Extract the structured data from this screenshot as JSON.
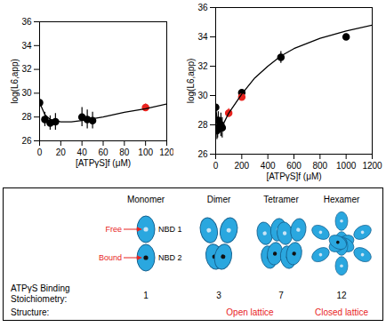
{
  "chart_data": [
    {
      "type": "scatter",
      "x_label": "[ATPγS]f (μM)",
      "y_label": "log(L6,app)",
      "xlim": [
        0,
        120
      ],
      "xticks": [
        0,
        20,
        40,
        60,
        80,
        100,
        120
      ],
      "ylim": [
        26,
        36
      ],
      "yticks": [
        26,
        28,
        30,
        32,
        34,
        36
      ],
      "series": [
        {
          "type": "scatter",
          "color": "#000000",
          "marker": "circle",
          "x": [
            0,
            5,
            10,
            15,
            40,
            45,
            50
          ],
          "values": [
            29.2,
            27.8,
            27.5,
            27.6,
            28.0,
            27.8,
            27.7
          ],
          "error": [
            0.2,
            0.6,
            0.6,
            0.7,
            0.8,
            0.8,
            0.7
          ]
        },
        {
          "type": "scatter",
          "color": "#e8231e",
          "marker": "circle",
          "x": [
            100
          ],
          "values": [
            28.8
          ],
          "error": [
            0.3
          ]
        },
        {
          "type": "line",
          "color": "#000000",
          "line_style": "solid",
          "x": [
            0,
            5,
            10,
            20,
            30,
            40,
            60,
            80,
            100,
            120
          ],
          "values": [
            29.2,
            28.2,
            27.8,
            27.6,
            27.6,
            27.7,
            28.0,
            28.4,
            28.7,
            29.1
          ]
        }
      ]
    },
    {
      "type": "scatter",
      "x_label": "[ATPγS]f (μM)",
      "y_label": "log(L6,app)",
      "xlim": [
        0,
        1200
      ],
      "xticks": [
        0,
        200,
        400,
        600,
        800,
        1000,
        1200
      ],
      "ylim": [
        26,
        36
      ],
      "yticks": [
        26,
        28,
        30,
        32,
        34,
        36
      ],
      "series": [
        {
          "type": "scatter",
          "color": "#000000",
          "marker": "circle",
          "x": [
            0,
            10,
            15,
            20,
            40,
            50,
            200,
            500,
            1000
          ],
          "values": [
            29.2,
            27.6,
            27.8,
            28.3,
            28.0,
            27.8,
            30.2,
            32.6,
            34.0
          ],
          "error": [
            0.2,
            0.6,
            0.7,
            0.6,
            0.8,
            0.7,
            0.2,
            0.4,
            0.2
          ]
        },
        {
          "type": "scatter",
          "color": "#e8231e",
          "marker": "circle",
          "x": [
            100,
            200
          ],
          "values": [
            28.8,
            29.9
          ],
          "error": [
            0.3,
            0.2
          ]
        },
        {
          "type": "line",
          "color": "#000000",
          "line_style": "solid",
          "x": [
            0,
            20,
            50,
            100,
            200,
            300,
            400,
            500,
            600,
            800,
            1000,
            1200
          ],
          "values": [
            29.2,
            27.7,
            27.9,
            28.8,
            30.1,
            31.2,
            32.0,
            32.7,
            33.2,
            33.9,
            34.4,
            34.8
          ]
        }
      ]
    }
  ],
  "diagram": {
    "columns": [
      {
        "name": "Monomer",
        "stoichiometry": 1
      },
      {
        "name": "Dimer",
        "stoichiometry": 3
      },
      {
        "name": "Tetramer",
        "stoichiometry": 7
      },
      {
        "name": "Hexamer",
        "stoichiometry": 12
      }
    ],
    "free_label": "Free",
    "bound_label": "Bound",
    "nbd1_label": "NBD 1",
    "nbd2_label": "NBD 2",
    "stoichiometry_label": "ATPγS Binding Stoichiometry:",
    "structure_label": "Structure:",
    "open_label": "Open lattice",
    "closed_label": "Closed lattice"
  }
}
